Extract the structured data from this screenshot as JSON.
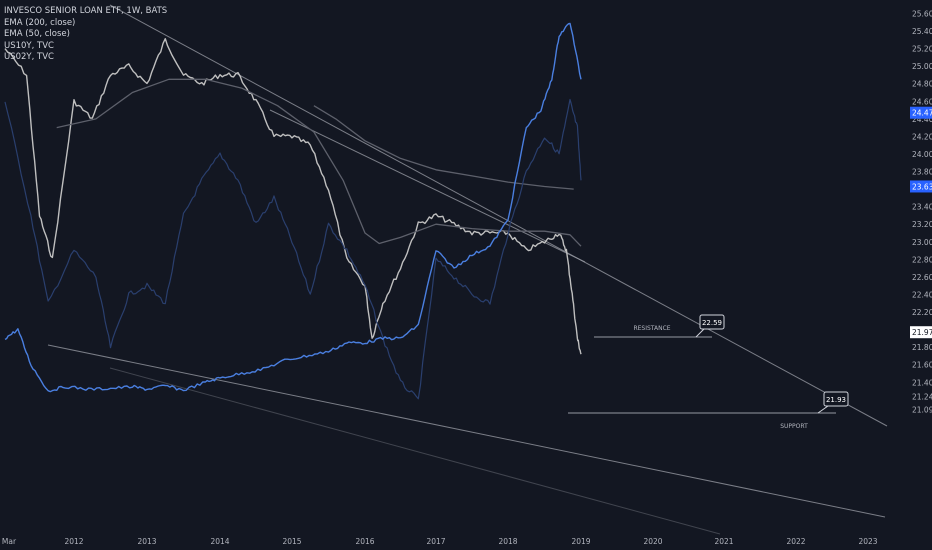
{
  "legend": {
    "title": "INVESCO SENIOR LOAN ETF, 1W, BATS",
    "items": [
      "EMA (200, close)",
      "EMA (50, close)",
      "US10Y, TVC",
      "US02Y, TVC"
    ]
  },
  "colors": {
    "background": "#131722",
    "candle": "#c8c8c8",
    "ema": "#5d606b",
    "us10y": "#2a3f6e",
    "us02y": "#4a7fe0",
    "trendline": "#9598a1",
    "axis_text": "#b2b5be",
    "price_tag_blue": "#2962ff"
  },
  "chart_data": {
    "type": "line",
    "title": "INVESCO SENIOR LOAN ETF, 1W, BATS",
    "xlabel": "",
    "ylabel": "",
    "x_ticks": [
      "Mar",
      "2012",
      "2013",
      "2014",
      "2015",
      "2016",
      "2017",
      "2018",
      "2019",
      "2020",
      "2021",
      "2022",
      "2023"
    ],
    "y_ticks": [
      "25.60",
      "25.40",
      "25.20",
      "25.00",
      "24.80",
      "24.60",
      "24.40",
      "24.20",
      "24.00",
      "23.80",
      "23.60",
      "23.40",
      "23.20",
      "23.00",
      "22.80",
      "22.60",
      "22.40",
      "22.20",
      "22.00",
      "21.80",
      "21.60",
      "21.40",
      "21.24",
      "21.09"
    ],
    "price_tags": [
      {
        "label": "24.47",
        "price": 24.47,
        "style": "blue"
      },
      {
        "label": "23.63",
        "price": 23.63,
        "style": "blue"
      },
      {
        "label": "21.97",
        "price": 21.97,
        "style": "white"
      }
    ],
    "annotations": [
      {
        "label": "22.59",
        "kind": "callout"
      },
      {
        "label": "21.93",
        "kind": "callout"
      },
      {
        "label": "RESISTANCE",
        "kind": "text"
      },
      {
        "label": "SUPPORT",
        "kind": "text"
      }
    ],
    "series": [
      {
        "name": "INVESCO SENIOR LOAN ETF",
        "time": [
          2011.2,
          2011.45,
          2011.6,
          2011.75,
          2012.0,
          2012.25,
          2012.5,
          2012.75,
          2013.0,
          2013.25,
          2013.5,
          2013.75,
          2014.0,
          2014.25,
          2014.5,
          2014.75,
          2015.0,
          2015.25,
          2015.5,
          2015.75,
          2016.0,
          2016.1,
          2016.25,
          2016.5,
          2016.75,
          2017.0,
          2017.25,
          2017.5,
          2017.75,
          2018.0,
          2018.25,
          2018.5,
          2018.7,
          2018.8,
          2018.88,
          2018.95,
          2019.0
        ],
        "values": [
          25.2,
          24.9,
          23.3,
          22.8,
          24.6,
          24.4,
          24.9,
          25.0,
          24.8,
          25.3,
          24.9,
          24.8,
          24.9,
          24.9,
          24.6,
          24.2,
          24.2,
          24.1,
          23.6,
          22.8,
          22.5,
          21.9,
          22.3,
          22.7,
          23.2,
          23.3,
          23.2,
          23.1,
          23.1,
          23.1,
          22.9,
          23.0,
          23.1,
          22.9,
          22.4,
          21.9,
          21.72
        ]
      },
      {
        "name": "EMA (200, close)",
        "time": [
          2015.3,
          2015.6,
          2016.0,
          2016.5,
          2017.0,
          2017.5,
          2018.0,
          2018.5,
          2018.9
        ],
        "values": [
          24.55,
          24.4,
          24.15,
          23.95,
          23.82,
          23.75,
          23.68,
          23.63,
          23.6
        ]
      },
      {
        "name": "EMA (50, close)",
        "time": [
          2011.8,
          2012.3,
          2012.8,
          2013.3,
          2013.8,
          2014.3,
          2014.8,
          2015.3,
          2015.7,
          2016.0,
          2016.2,
          2016.5,
          2017.0,
          2017.5,
          2018.0,
          2018.5,
          2018.85,
          2019.0
        ],
        "values": [
          24.3,
          24.4,
          24.7,
          24.85,
          24.85,
          24.75,
          24.55,
          24.25,
          23.7,
          23.1,
          22.98,
          23.05,
          23.2,
          23.15,
          23.12,
          23.12,
          23.08,
          22.95
        ]
      },
      {
        "name": "US10Y, TVC",
        "time": [
          2011.2,
          2011.5,
          2011.7,
          2012.0,
          2012.3,
          2012.5,
          2012.75,
          2013.0,
          2013.25,
          2013.5,
          2013.75,
          2014.0,
          2014.25,
          2014.5,
          2014.75,
          2015.0,
          2015.25,
          2015.5,
          2015.75,
          2016.0,
          2016.25,
          2016.5,
          2016.75,
          2017.0,
          2017.25,
          2017.5,
          2017.75,
          2018.0,
          2018.25,
          2018.5,
          2018.7,
          2018.85,
          2018.95,
          2019.0
        ],
        "values": [
          24.6,
          23.3,
          22.3,
          22.9,
          22.6,
          21.8,
          22.4,
          22.5,
          22.3,
          23.3,
          23.7,
          24.0,
          23.7,
          23.2,
          23.5,
          23.0,
          22.4,
          23.2,
          22.9,
          22.5,
          21.9,
          21.4,
          21.2,
          22.8,
          22.6,
          22.4,
          22.3,
          23.1,
          23.8,
          24.2,
          24.0,
          24.6,
          24.3,
          23.7
        ]
      },
      {
        "name": "US02Y, TVC",
        "time": [
          2011.2,
          2011.35,
          2011.5,
          2011.7,
          2011.9,
          2012.2,
          2012.5,
          2012.8,
          2013.0,
          2013.25,
          2013.5,
          2013.8,
          2014.0,
          2014.3,
          2014.6,
          2014.9,
          2015.2,
          2015.5,
          2015.75,
          2016.0,
          2016.25,
          2016.5,
          2016.75,
          2017.0,
          2017.25,
          2017.5,
          2017.75,
          2018.0,
          2018.25,
          2018.45,
          2018.6,
          2018.7,
          2018.85,
          2019.0
        ],
        "values": [
          21.9,
          22.0,
          21.6,
          21.3,
          21.35,
          21.32,
          21.33,
          21.35,
          21.32,
          21.36,
          21.31,
          21.4,
          21.45,
          21.5,
          21.55,
          21.65,
          21.7,
          21.75,
          21.85,
          21.85,
          21.9,
          21.9,
          22.05,
          22.9,
          22.7,
          22.85,
          22.95,
          23.25,
          24.3,
          24.5,
          24.85,
          25.35,
          25.5,
          24.85
        ]
      }
    ],
    "ylim": [
      21.0,
      25.7
    ],
    "xlim": [
      2011.05,
      2023.25
    ],
    "grid": false,
    "legend": "top-left"
  }
}
